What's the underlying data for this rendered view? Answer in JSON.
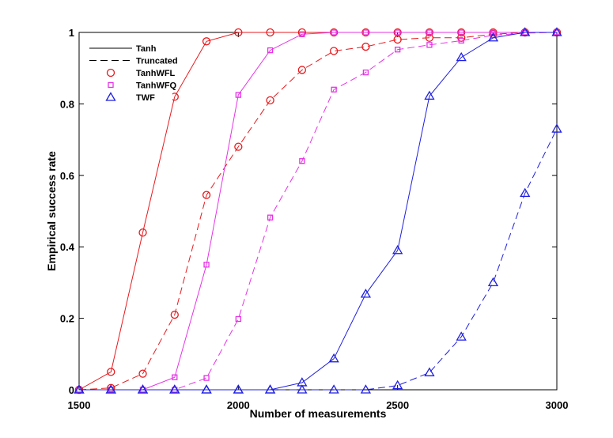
{
  "chart_data": {
    "type": "line",
    "title": "",
    "xlabel": "Number of measurements",
    "ylabel": "Empirical success rate",
    "xlim": [
      1500,
      3000
    ],
    "ylim": [
      0,
      1
    ],
    "xticks": [
      1500,
      2000,
      2500,
      3000
    ],
    "yticks": [
      0,
      0.2,
      0.4,
      0.6,
      0.8,
      1
    ],
    "ytick_labels": [
      "0",
      "0.2",
      "0.4",
      "0.6",
      "0.8",
      "1"
    ],
    "grid": false,
    "legend_position": "top-left",
    "x": [
      1500,
      1600,
      1700,
      1800,
      1900,
      2000,
      2100,
      2200,
      2300,
      2400,
      2500,
      2600,
      2700,
      2800,
      2900,
      3000
    ],
    "legend": [
      {
        "label": "Tanh",
        "kind": "line",
        "dash": "solid"
      },
      {
        "label": "Truncated",
        "kind": "line",
        "dash": "dashed"
      },
      {
        "label": "TanhWFL",
        "kind": "marker",
        "marker": "circle",
        "color": "#e8191d"
      },
      {
        "label": "TanhWFQ",
        "kind": "marker",
        "marker": "square",
        "color": "#e632e6"
      },
      {
        "label": "TWF",
        "kind": "marker",
        "marker": "triangle",
        "color": "#1f1fe0"
      }
    ],
    "series": [
      {
        "legend": "TanhWFL / Tanh",
        "marker": "circle",
        "dash": "solid",
        "color": "#e8191d",
        "values": [
          0.0,
          0.05,
          0.44,
          0.82,
          0.975,
          1.0,
          1.0,
          1.0,
          1.0,
          1.0,
          1.0,
          1.0,
          1.0,
          1.0,
          1.0,
          1.0
        ]
      },
      {
        "legend": "TanhWFL / Truncated",
        "marker": "circle",
        "dash": "dashed",
        "color": "#e8191d",
        "values": [
          0.0,
          0.005,
          0.045,
          0.21,
          0.545,
          0.68,
          0.81,
          0.895,
          0.948,
          0.96,
          0.98,
          0.985,
          0.985,
          0.995,
          1.0,
          1.0
        ]
      },
      {
        "legend": "TanhWFQ / Tanh",
        "marker": "square",
        "dash": "solid",
        "color": "#e632e6",
        "values": [
          0.0,
          0.0,
          0.0,
          0.035,
          0.35,
          0.825,
          0.95,
          0.995,
          1.0,
          1.0,
          1.0,
          1.0,
          1.0,
          1.0,
          1.0,
          1.0
        ]
      },
      {
        "legend": "TanhWFQ / Truncated",
        "marker": "square",
        "dash": "dashed",
        "color": "#e632e6",
        "values": [
          0.0,
          0.0,
          0.0,
          0.0,
          0.033,
          0.198,
          0.482,
          0.64,
          0.84,
          0.888,
          0.952,
          0.965,
          0.977,
          0.992,
          0.998,
          1.0
        ]
      },
      {
        "legend": "TWF / Tanh",
        "marker": "triangle",
        "dash": "solid",
        "color": "#1f1fe0",
        "values": [
          0.0,
          0.0,
          0.0,
          0.0,
          0.0,
          0.0,
          0.0,
          0.02,
          0.087,
          0.268,
          0.39,
          0.822,
          0.93,
          0.985,
          1.0,
          1.0
        ]
      },
      {
        "legend": "TWF / Truncated",
        "marker": "triangle",
        "dash": "dashed",
        "color": "#1f1fe0",
        "values": [
          0.0,
          0.0,
          0.0,
          0.0,
          0.0,
          0.0,
          0.0,
          0.0,
          0.0,
          0.0,
          0.012,
          0.048,
          0.148,
          0.3,
          0.55,
          0.73
        ]
      }
    ]
  }
}
